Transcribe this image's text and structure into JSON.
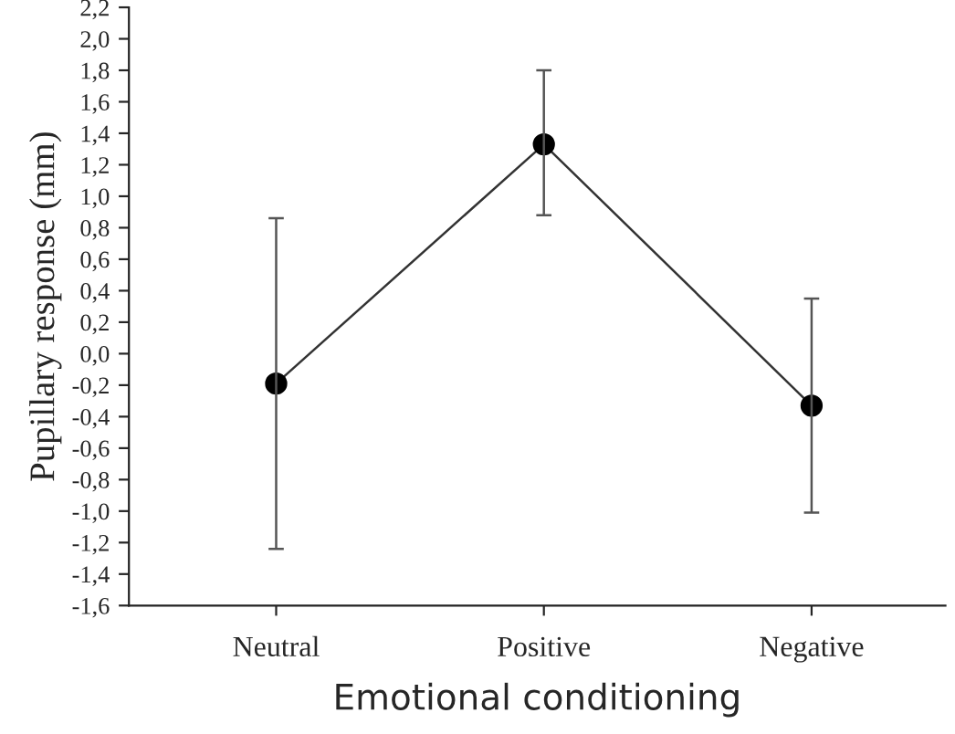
{
  "chart_data": {
    "type": "line",
    "xlabel": "Emotional conditioning",
    "ylabel": "Pupillary response (mm)",
    "categories": [
      "Neutral",
      "Positive",
      "Negative"
    ],
    "series": [
      {
        "color": "#000000",
        "values": [
          -0.19,
          1.33,
          -0.33
        ],
        "errors": [
          [
            -1.24,
            0.86
          ],
          [
            0.88,
            1.8
          ],
          [
            -1.01,
            0.35
          ]
        ]
      }
    ],
    "marker": "circle",
    "line_style": "solid",
    "grid": false,
    "legend": false,
    "ylim": [
      -1.6,
      2.2
    ],
    "yticks": [
      {
        "value": -1.6,
        "label": "-1,6"
      },
      {
        "value": -1.4,
        "label": "-1,4"
      },
      {
        "value": -1.2,
        "label": "-1,2"
      },
      {
        "value": -1.0,
        "label": "-1,0"
      },
      {
        "value": -0.8,
        "label": "-0,8"
      },
      {
        "value": -0.6,
        "label": "-0,6"
      },
      {
        "value": -0.4,
        "label": "-0,4"
      },
      {
        "value": -0.2,
        "label": "-0,2"
      },
      {
        "value": 0.0,
        "label": "0,0"
      },
      {
        "value": 0.2,
        "label": "0,2"
      },
      {
        "value": 0.4,
        "label": "0,4"
      },
      {
        "value": 0.6,
        "label": "0,6"
      },
      {
        "value": 0.8,
        "label": "0,8"
      },
      {
        "value": 1.0,
        "label": "1,0"
      },
      {
        "value": 1.2,
        "label": "1,2"
      },
      {
        "value": 1.4,
        "label": "1,4"
      },
      {
        "value": 1.6,
        "label": "1,6"
      },
      {
        "value": 1.8,
        "label": "1,8"
      },
      {
        "value": 2.0,
        "label": "2,0"
      },
      {
        "value": 2.2,
        "label": "2,2"
      }
    ]
  }
}
